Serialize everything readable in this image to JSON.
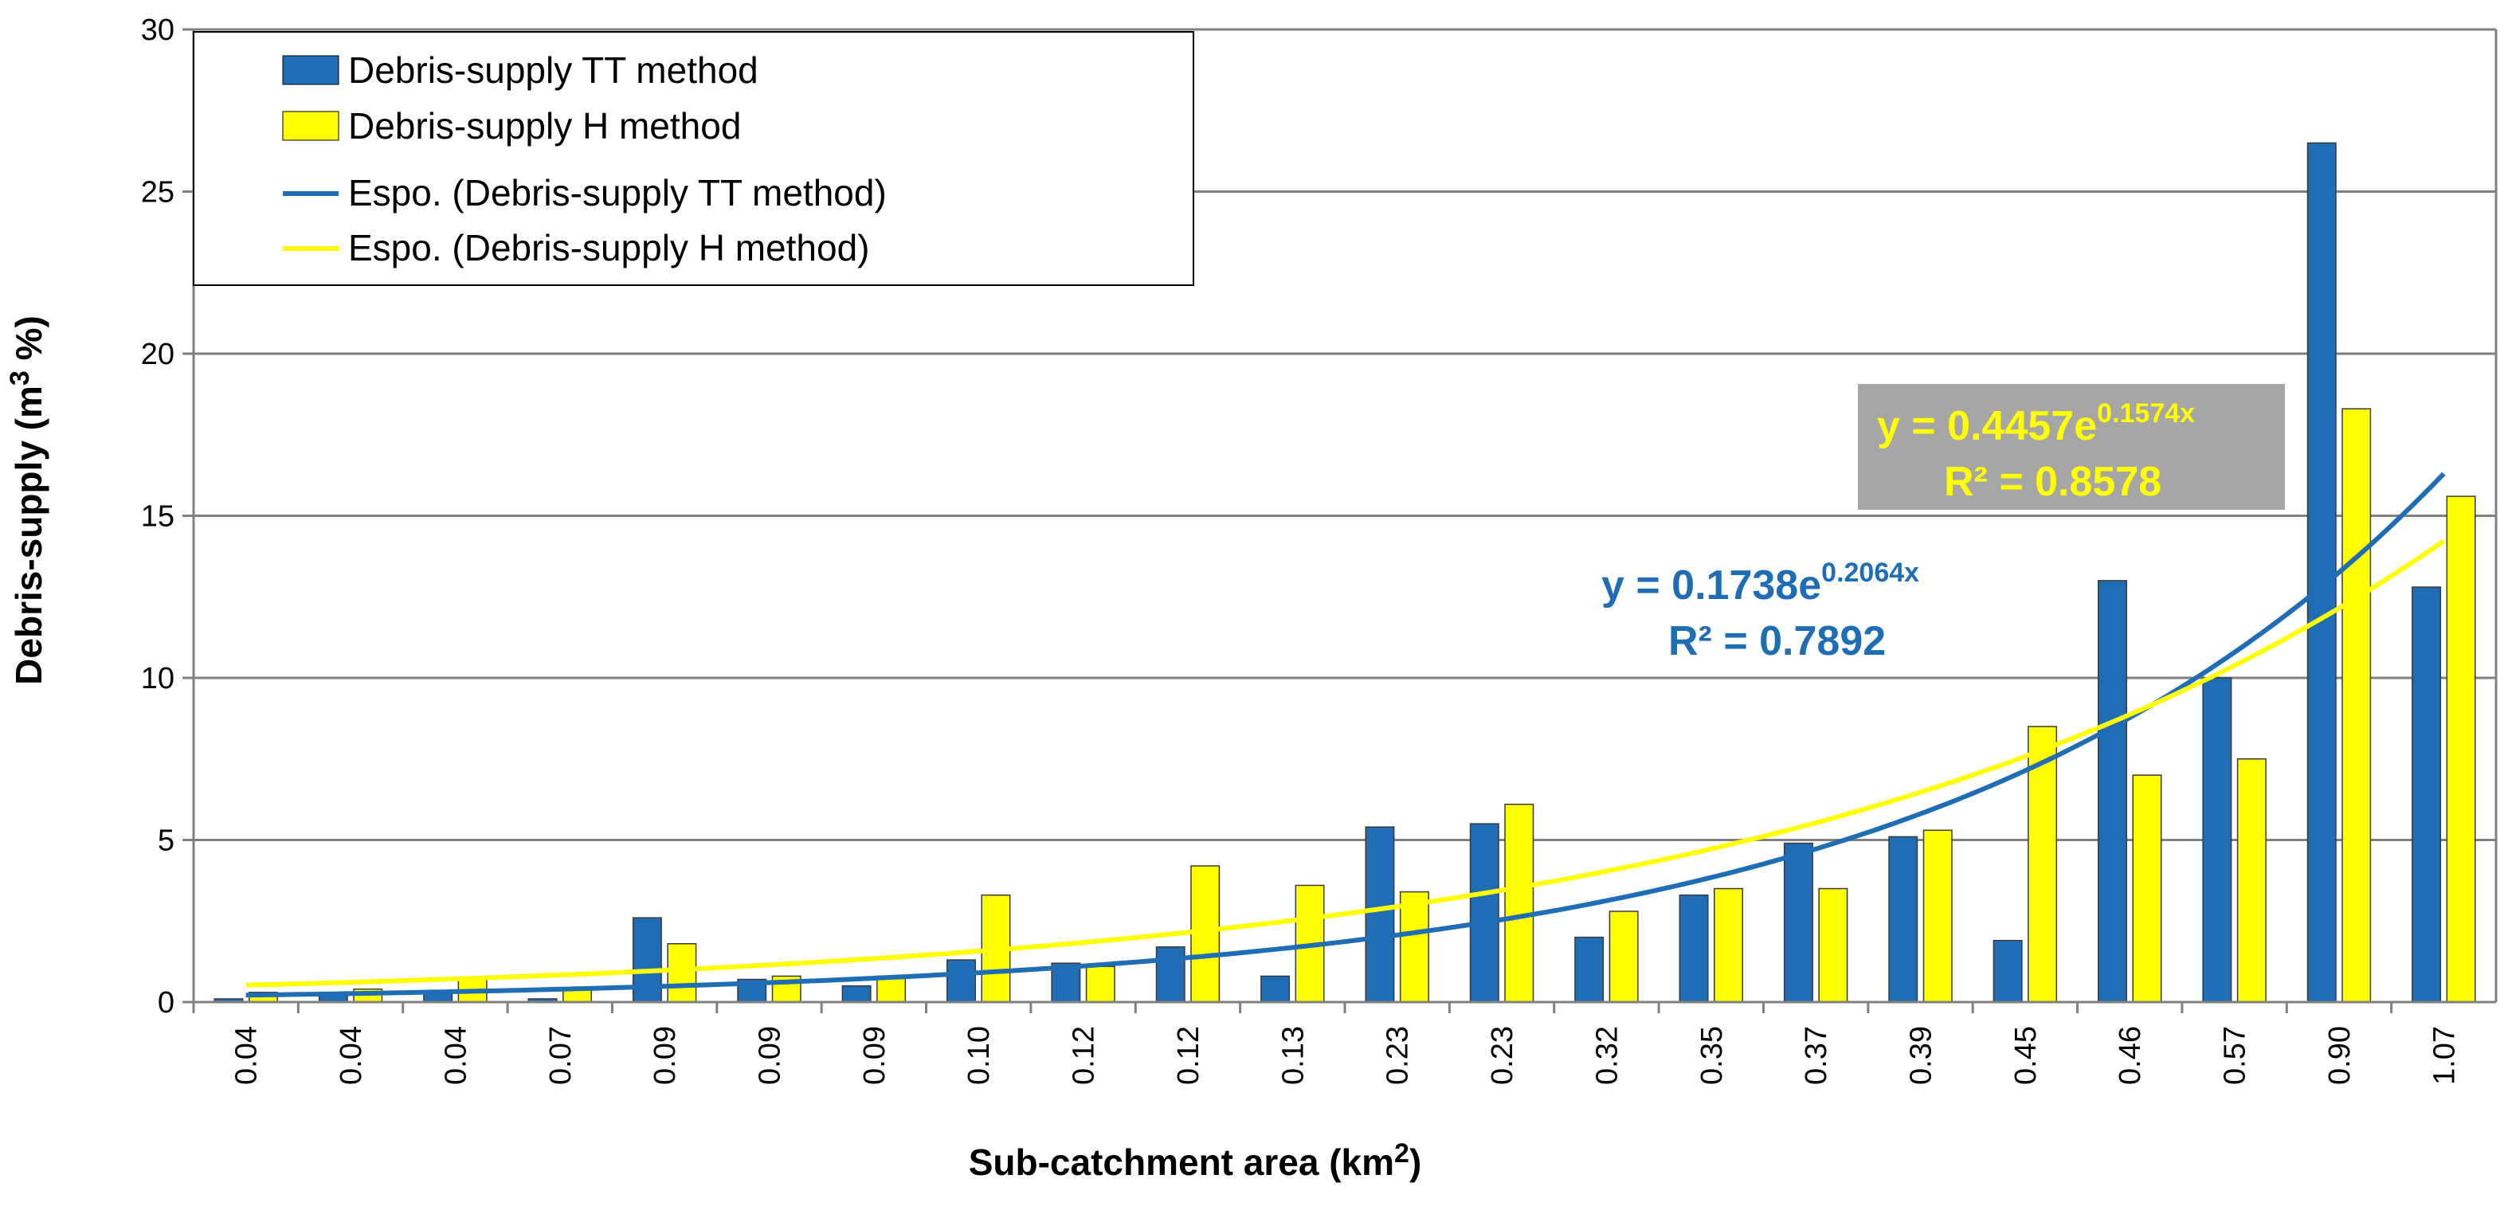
{
  "chart_data": {
    "type": "bar",
    "title": "",
    "xlabel": "Sub-catchment area (km",
    "xlabel_sup": "2",
    "xlabel_end": ")",
    "ylabel": "Debris-supply  (m",
    "ylabel_sup": "3",
    "ylabel_end": " %)",
    "ylim": [
      0,
      30
    ],
    "yticks": [
      "0",
      "5",
      "10",
      "15",
      "20",
      "25",
      "30"
    ],
    "categories": [
      "0.04",
      "0.04",
      "0.04",
      "0.07",
      "0.09",
      "0.09",
      "0.09",
      "0.10",
      "0.12",
      "0.12",
      "0.13",
      "0.23",
      "0.23",
      "0.32",
      "0.35",
      "0.37",
      "0.39",
      "0.45",
      "0.46",
      "0.57",
      "0.90",
      "1.07"
    ],
    "series": [
      {
        "name": "Debris-supply TT method",
        "color": "#1f6db5",
        "values": [
          0.1,
          0.2,
          0.3,
          0.1,
          2.6,
          0.7,
          0.5,
          1.3,
          1.2,
          1.7,
          0.8,
          5.4,
          5.5,
          2.0,
          3.3,
          4.9,
          5.1,
          1.9,
          13.0,
          10.0,
          26.5,
          12.8
        ]
      },
      {
        "name": "Debris-supply H method",
        "color": "#ffff00",
        "values": [
          0.3,
          0.4,
          0.7,
          0.4,
          1.8,
          0.8,
          0.8,
          3.3,
          1.1,
          4.2,
          3.6,
          3.4,
          6.1,
          2.8,
          3.5,
          3.5,
          5.3,
          8.5,
          7.0,
          7.5,
          18.3,
          15.6
        ]
      }
    ],
    "trendlines": [
      {
        "name": "Espo. (Debris-supply TT method)",
        "color": "#1f6db5",
        "a": 0.1738,
        "b": 0.2064,
        "equation_prefix": "y = 0.1738e",
        "equation_exp": "0.2064x",
        "r2_label": "R² = 0.7892"
      },
      {
        "name": "Espo. (Debris-supply H method)",
        "color": "#ffff00",
        "a": 0.4457,
        "b": 0.1574,
        "equation_prefix": "y = 0.4457e",
        "equation_exp": "0.1574x",
        "r2_label": "R² = 0.8578"
      }
    ],
    "legend": [
      "Debris-supply TT method",
      "Debris-supply H method",
      "Espo. (Debris-supply TT method)",
      "Espo. (Debris-supply H method)"
    ],
    "legend_position": "top-left",
    "grid": true
  }
}
